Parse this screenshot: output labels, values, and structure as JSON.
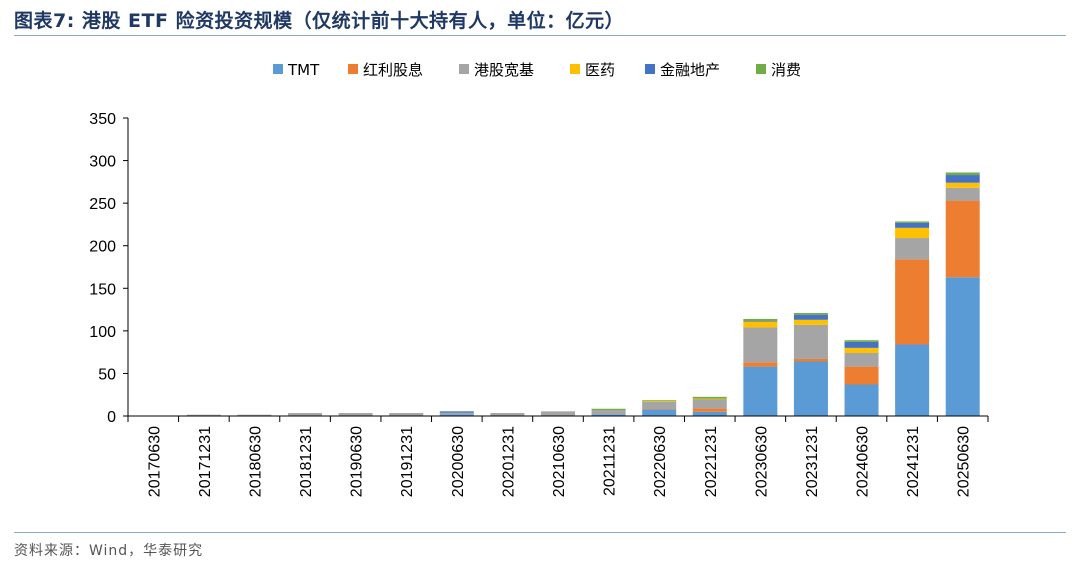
{
  "title": "图表7:   港股 ETF 险资投资规模（仅统计前十大持有人，单位：亿元）",
  "source": "资料来源：Wind，华泰研究",
  "colors": {
    "TMT": "#5b9bd5",
    "红利股息": "#ed7d31",
    "港股宽基": "#a5a5a5",
    "医药": "#ffc000",
    "金融地产": "#4472c4",
    "消费": "#70ad47"
  },
  "chart_data": {
    "type": "bar",
    "stacked": true,
    "categories": [
      "20170630",
      "20171231",
      "20180630",
      "20181231",
      "20190630",
      "20191231",
      "20200630",
      "20201231",
      "20210630",
      "20211231",
      "20220630",
      "20221231",
      "20230630",
      "20231231",
      "20240630",
      "20241231",
      "20250630"
    ],
    "series": [
      {
        "name": "TMT",
        "values": [
          0,
          0,
          0,
          0,
          0,
          0,
          2,
          0,
          0,
          2,
          8,
          5,
          58,
          64,
          37,
          84,
          163
        ]
      },
      {
        "name": "红利股息",
        "values": [
          0,
          0,
          0,
          0,
          0,
          0,
          0,
          0,
          0,
          0,
          1,
          4,
          5,
          3,
          21,
          100,
          90
        ]
      },
      {
        "name": "港股宽基",
        "values": [
          0.5,
          1.5,
          1.5,
          3.5,
          3.5,
          3.5,
          2,
          3.5,
          5.5,
          5,
          8,
          11,
          41,
          40,
          16,
          25,
          15
        ]
      },
      {
        "name": "医药",
        "values": [
          0,
          0,
          0,
          0,
          0,
          0,
          0,
          0,
          0,
          0,
          0.5,
          0.5,
          7,
          6,
          6,
          12,
          6
        ]
      },
      {
        "name": "金融地产",
        "values": [
          0,
          0,
          0,
          0,
          0,
          0,
          1.5,
          0,
          0,
          0,
          0,
          0,
          1,
          6,
          7,
          6,
          9
        ]
      },
      {
        "name": "消费",
        "values": [
          0,
          0,
          0,
          0,
          0,
          0,
          0,
          0,
          0,
          1.5,
          1,
          2,
          2,
          2,
          2,
          1.5,
          3
        ]
      }
    ],
    "ylim": [
      0,
      350
    ],
    "yticks": [
      0,
      50,
      100,
      150,
      200,
      250,
      300,
      350
    ],
    "xlabel": "",
    "ylabel": "",
    "legend_position": "top-center",
    "grid": false
  }
}
